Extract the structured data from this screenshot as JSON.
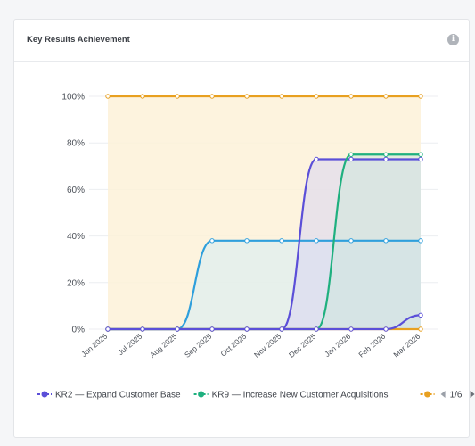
{
  "card": {
    "title": "Key Results Achievement",
    "info_icon": "info-icon"
  },
  "chart_data": {
    "type": "area",
    "title": "Key Results Achievement",
    "x_labels": [
      "Jun 2025",
      "Jul 2025",
      "Aug 2025",
      "Sep 2025",
      "Oct 2025",
      "Nov 2025",
      "Dec 2025",
      "Jan 2026",
      "Feb 2026",
      "Mar 2026"
    ],
    "y_ticks": [
      "0%",
      "20%",
      "40%",
      "60%",
      "80%",
      "100%"
    ],
    "ylim": [
      0,
      100
    ],
    "grid": true,
    "legend_position": "bottom",
    "series": [
      {
        "name": "",
        "color": "#e8a020",
        "fill": "#fdf1d8",
        "values": [
          100,
          100,
          100,
          100,
          100,
          100,
          100,
          100,
          100,
          100
        ]
      },
      {
        "name": "",
        "color": "#2f9fdc",
        "fill": "#d6ecf6",
        "values": [
          0,
          0,
          0,
          38,
          38,
          38,
          38,
          38,
          38,
          38
        ]
      },
      {
        "name": "KR2 — Expand Customer Base",
        "color": "#5b4fd8",
        "fill": "#d8d6f2",
        "values": [
          0,
          0,
          0,
          0,
          0,
          0,
          73,
          73,
          73,
          73
        ]
      },
      {
        "name": "KR9 — Increase New Customer Acquisitions",
        "color": "#1fb07f",
        "fill": "#cde8dc",
        "values": [
          0,
          0,
          0,
          0,
          0,
          0,
          0,
          75,
          75,
          75
        ]
      },
      {
        "name": "",
        "color": "#e8a020",
        "fill": "none",
        "values": [
          0,
          0,
          0,
          0,
          0,
          0,
          0,
          0,
          0,
          0
        ]
      },
      {
        "name": "",
        "color": "#5b4fd8",
        "fill": "none",
        "values": [
          0,
          0,
          0,
          0,
          0,
          0,
          0,
          0,
          0,
          6
        ]
      }
    ],
    "legend": {
      "items": [
        "KR2 — Expand Customer Base",
        "KR9 — Increase New Customer Acquisitions",
        ""
      ],
      "colors": [
        "#5b4fd8",
        "#1fb07f",
        "#e8a020"
      ],
      "page": "1/6"
    }
  }
}
